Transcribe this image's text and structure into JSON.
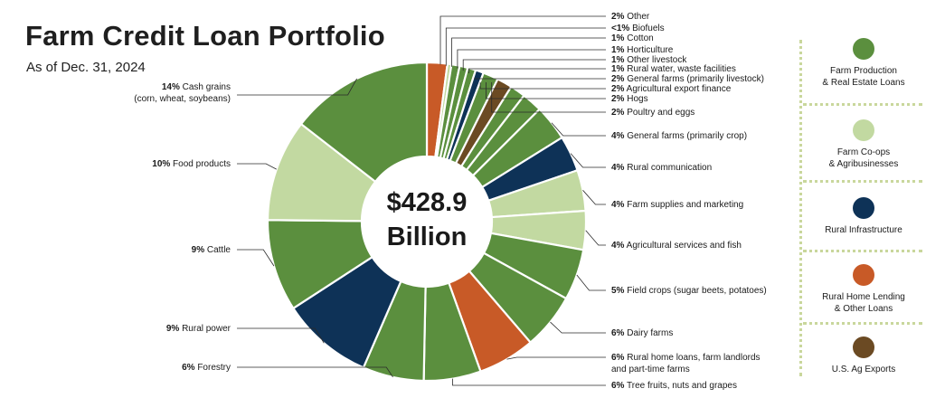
{
  "header": {
    "title": "Farm Credit Loan Portfolio",
    "subtitle": "As of Dec. 31, 2024"
  },
  "colors": {
    "farm_production": "#5b8f3e",
    "coops": "#c2d9a1",
    "rural_infrastructure": "#0e3257",
    "rural_home": "#c85a27",
    "ag_exports": "#6b4a23"
  },
  "chart_data": {
    "type": "pie",
    "center_label": [
      "$428.9",
      "Billion"
    ],
    "slices": [
      {
        "pct": "2%",
        "label": "Other",
        "value": 2,
        "group": "rural_home"
      },
      {
        "pct": "<1%",
        "label": "Biofuels",
        "value": 0.4,
        "group": "coops"
      },
      {
        "pct": "1%",
        "label": "Cotton",
        "value": 0.8,
        "group": "farm_production"
      },
      {
        "pct": "1%",
        "label": "Horticulture",
        "value": 0.8,
        "group": "farm_production"
      },
      {
        "pct": "1%",
        "label": "Other livestock",
        "value": 0.8,
        "group": "farm_production"
      },
      {
        "pct": "1%",
        "label": "Rural water, waste facilities",
        "value": 0.8,
        "group": "rural_infrastructure"
      },
      {
        "pct": "2%",
        "label": "General farms (primarily livestock)",
        "value": 1.5,
        "group": "farm_production"
      },
      {
        "pct": "2%",
        "label": "Agricultural export finance",
        "value": 1.5,
        "group": "ag_exports"
      },
      {
        "pct": "2%",
        "label": "Hogs",
        "value": 1.5,
        "group": "farm_production"
      },
      {
        "pct": "2%",
        "label": "Poultry and eggs",
        "value": 2,
        "group": "farm_production"
      },
      {
        "pct": "4%",
        "label": "General farms (primarily crop)",
        "value": 3.5,
        "group": "farm_production"
      },
      {
        "pct": "4%",
        "label": "Rural communication",
        "value": 3.5,
        "group": "rural_infrastructure"
      },
      {
        "pct": "4%",
        "label": "Farm supplies and marketing",
        "value": 4,
        "group": "coops"
      },
      {
        "pct": "4%",
        "label": "Agricultural services and fish",
        "value": 3.8,
        "group": "coops"
      },
      {
        "pct": "5%",
        "label": "Field crops (sugar beets, potatoes)",
        "value": 5,
        "group": "farm_production"
      },
      {
        "pct": "6%",
        "label": "Dairy farms",
        "value": 5.5,
        "group": "farm_production"
      },
      {
        "pct": "6%",
        "label": "Rural home loans, farm landlords and part-time farms",
        "lines": [
          "Rural home loans, farm landlords",
          "and part-time farms"
        ],
        "value": 5.6,
        "group": "rural_home"
      },
      {
        "pct": "6%",
        "label": "Tree fruits, nuts and grapes",
        "value": 5.6,
        "group": "farm_production"
      },
      {
        "pct": "6%",
        "label": "Forestry",
        "value": 6,
        "group": "farm_production"
      },
      {
        "pct": "9%",
        "label": "Rural power",
        "value": 9,
        "group": "rural_infrastructure"
      },
      {
        "pct": "9%",
        "label": "Cattle",
        "value": 9,
        "group": "farm_production"
      },
      {
        "pct": "10%",
        "label": "Food products",
        "value": 10,
        "group": "coops"
      },
      {
        "pct": "14%",
        "label": "Cash grains (corn, wheat, soybeans)",
        "lines": [
          "Cash grains",
          "(corn, wheat, soybeans)"
        ],
        "value": 14,
        "group": "farm_production"
      }
    ]
  },
  "legend": {
    "items": [
      {
        "group": "farm_production",
        "lines": [
          "Farm Production",
          "& Real Estate Loans"
        ]
      },
      {
        "group": "coops",
        "lines": [
          "Farm Co-ops",
          "& Agribusinesses"
        ]
      },
      {
        "group": "rural_infrastructure",
        "lines": [
          "Rural Infrastructure"
        ]
      },
      {
        "group": "rural_home",
        "lines": [
          "Rural Home Lending",
          "& Other Loans"
        ]
      },
      {
        "group": "ag_exports",
        "lines": [
          "U.S. Ag Exports"
        ]
      }
    ]
  }
}
